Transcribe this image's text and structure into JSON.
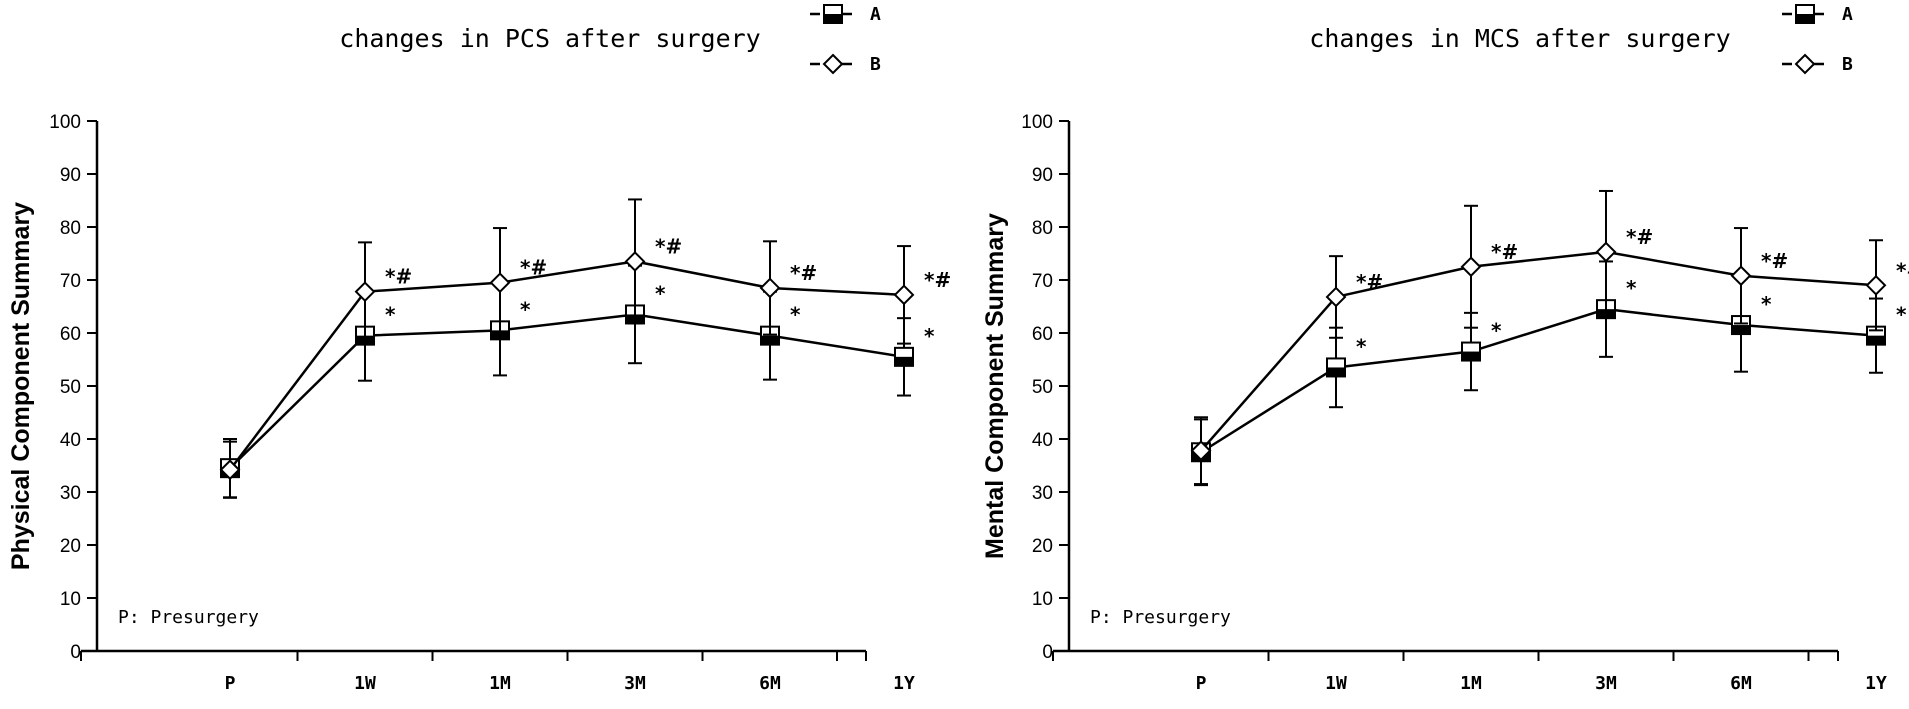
{
  "chart_data": [
    {
      "type": "line",
      "title": "changes in PCS after surgery",
      "ylabel": "Physical Component Summary",
      "xlabel": "",
      "ylim": [
        0,
        100
      ],
      "yticks": [
        0,
        10,
        20,
        30,
        40,
        50,
        60,
        70,
        80,
        90,
        100
      ],
      "categories": [
        "P",
        "1W",
        "1M",
        "3M",
        "6M",
        "1Y"
      ],
      "note": "P: Presurgery",
      "legend": [
        "A",
        "B"
      ],
      "legend_position": "top-right",
      "series": [
        {
          "name": "A",
          "marker": "square",
          "values": [
            34.5,
            59.5,
            60.5,
            63.5,
            59.5,
            55.5
          ],
          "error": [
            5.5,
            8.5,
            8.5,
            9.2,
            8.3,
            7.3
          ],
          "annotations": [
            "",
            "*",
            "*",
            "*",
            "*",
            "*"
          ]
        },
        {
          "name": "B",
          "marker": "diamond",
          "values": [
            34.2,
            67.8,
            69.5,
            73.5,
            68.5,
            67.2
          ],
          "error": [
            5.3,
            9.3,
            10.3,
            11.7,
            8.8,
            9.2
          ],
          "annotations": [
            "",
            "*#",
            "*#",
            "*#",
            "*#",
            "*#"
          ]
        }
      ]
    },
    {
      "type": "line",
      "title": "changes in MCS after surgery",
      "ylabel": "Mental Component Summary",
      "xlabel": "",
      "ylim": [
        0,
        100
      ],
      "yticks": [
        0,
        10,
        20,
        30,
        40,
        50,
        60,
        70,
        80,
        90,
        100
      ],
      "categories": [
        "P",
        "1W",
        "1M",
        "3M",
        "6M",
        "1Y"
      ],
      "note": "P: Presurgery",
      "legend": [
        "A",
        "B"
      ],
      "legend_position": "top-right",
      "series": [
        {
          "name": "A",
          "marker": "square",
          "values": [
            37.5,
            53.5,
            56.5,
            64.5,
            61.5,
            59.5
          ],
          "error": [
            6.2,
            7.5,
            7.3,
            9.0,
            8.8,
            7.0
          ],
          "annotations": [
            "",
            "*",
            "*",
            "*",
            "*",
            "*"
          ]
        },
        {
          "name": "B",
          "marker": "diamond",
          "values": [
            37.8,
            66.8,
            72.5,
            75.3,
            70.8,
            69.0
          ],
          "error": [
            6.3,
            7.7,
            11.5,
            11.5,
            9.0,
            8.5
          ],
          "annotations": [
            "",
            "*#",
            "*#",
            "*#",
            "*#",
            "*#"
          ]
        }
      ]
    }
  ]
}
